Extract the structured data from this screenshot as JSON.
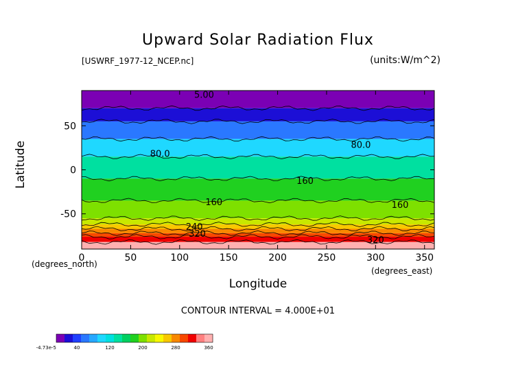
{
  "chart_data": {
    "type": "heatmap",
    "title": "Upward Solar Radiation Flux",
    "file_label": "[USWRF_1977-12_NCEP.nc]",
    "units_label": "(units:W/m^2)",
    "xlabel": "Longitude",
    "ylabel": "Latitude",
    "x_units_label": "(degrees_north)",
    "x_units_label_right": "(degrees_east)",
    "contour_interval_label": "CONTOUR INTERVAL = 4.000E+01",
    "xlim": [
      0,
      360
    ],
    "ylim": [
      -90,
      90
    ],
    "x_ticks": [
      0,
      50,
      100,
      150,
      200,
      250,
      300,
      350
    ],
    "y_ticks": [
      50,
      0,
      -50
    ],
    "contour_labels": [
      {
        "text": "5.00",
        "lon": 125,
        "lat": 85
      },
      {
        "text": "80.0",
        "lon": 80,
        "lat": 18
      },
      {
        "text": "80.0",
        "lon": 285,
        "lat": 28
      },
      {
        "text": "160",
        "lon": 228,
        "lat": -13
      },
      {
        "text": "160",
        "lon": 135,
        "lat": -37
      },
      {
        "text": "160",
        "lon": 325,
        "lat": -40
      },
      {
        "text": "240",
        "lon": 115,
        "lat": -65
      },
      {
        "text": "320",
        "lon": 118,
        "lat": -73
      },
      {
        "text": "320",
        "lon": 300,
        "lat": -80
      }
    ],
    "lat_bands": [
      {
        "lat_top": 90,
        "lat_bottom": 70,
        "value": 0
      },
      {
        "lat_top": 70,
        "lat_bottom": 55,
        "value": 35
      },
      {
        "lat_top": 55,
        "lat_bottom": 35,
        "value": 60
      },
      {
        "lat_top": 35,
        "lat_bottom": 15,
        "value": 100
      },
      {
        "lat_top": 15,
        "lat_bottom": -10,
        "value": 150
      },
      {
        "lat_top": -10,
        "lat_bottom": -35,
        "value": 180
      },
      {
        "lat_top": -35,
        "lat_bottom": -55,
        "value": 200
      },
      {
        "lat_top": -55,
        "lat_bottom": -62,
        "value": 225
      },
      {
        "lat_top": -62,
        "lat_bottom": -67,
        "value": 260
      },
      {
        "lat_top": -67,
        "lat_bottom": -72,
        "value": 280
      },
      {
        "lat_top": -72,
        "lat_bottom": -76,
        "value": 310
      },
      {
        "lat_top": -76,
        "lat_bottom": -82,
        "value": 330
      },
      {
        "lat_top": -82,
        "lat_bottom": -90,
        "value": 370
      }
    ],
    "colorbar": {
      "ticks": [
        "-4.73e-5",
        "40",
        "120",
        "200",
        "280",
        "360"
      ],
      "colors": [
        "#7b00b4",
        "#1c0fd6",
        "#2040ff",
        "#2a78ff",
        "#27a8ff",
        "#1fd8ff",
        "#00e0e0",
        "#00e0a0",
        "#00d060",
        "#20d020",
        "#7ee000",
        "#c8e800",
        "#f8f800",
        "#f8c800",
        "#f88800",
        "#f84800",
        "#f00000",
        "#ff8080",
        "#ffb0b0"
      ]
    }
  }
}
